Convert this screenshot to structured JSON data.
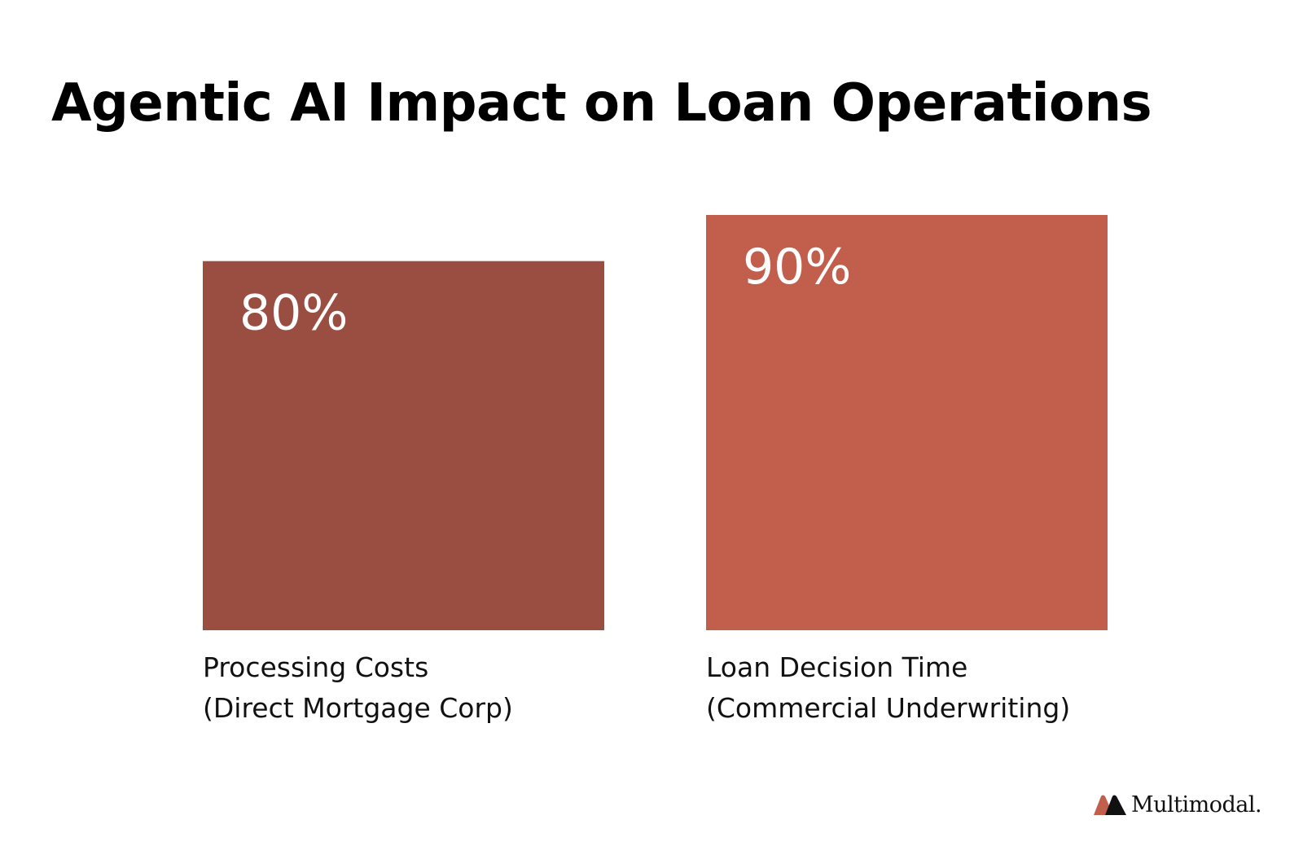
{
  "chart_data": {
    "type": "bar",
    "title": "Agentic AI Impact on Loan Operations",
    "xlabel": "",
    "ylabel": "",
    "ylim": [
      0,
      90
    ],
    "grid": false,
    "categories": [
      {
        "line1": "Processing Costs",
        "line2": "(Direct Mortgage Corp)"
      },
      {
        "line1": "Loan Decision Time",
        "line2": "(Commercial Underwriting)"
      }
    ],
    "values": [
      80,
      90
    ],
    "value_labels": [
      "80%",
      "90%"
    ],
    "colors": [
      "#994e41",
      "#c25e4c"
    ],
    "value_label_color": "#ffffff"
  },
  "brand": {
    "name": "Multimodal.",
    "logo_colors": [
      "#c25e4c",
      "#111111"
    ]
  }
}
